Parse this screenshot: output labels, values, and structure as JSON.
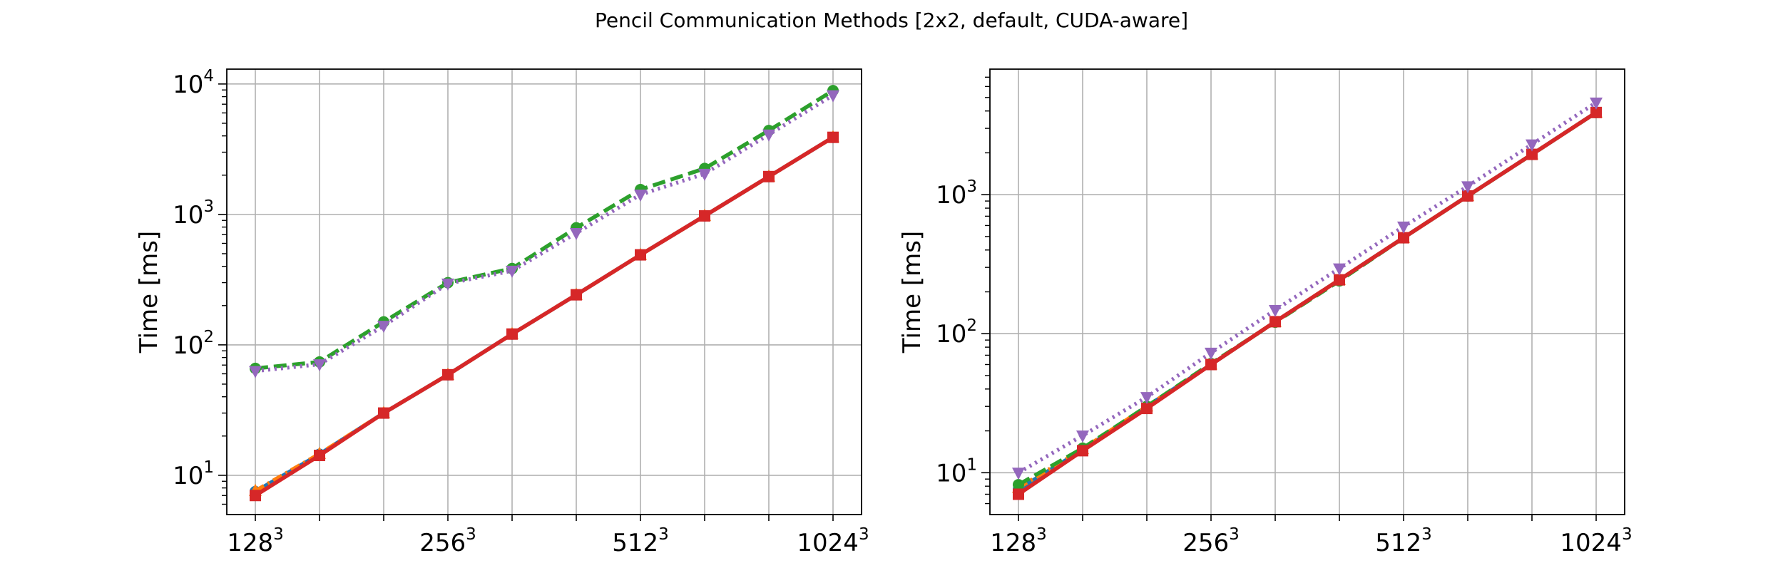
{
  "figure": {
    "title": "Pencil Communication Methods [2x2, default, CUDA-aware]"
  },
  "chart_data": [
    {
      "type": "line",
      "ylabel": "Time [ms]",
      "yscale": "log",
      "xscale": "log2",
      "ylim": [
        5,
        13000
      ],
      "yticks": [
        {
          "value": 10,
          "base": "10",
          "exp": "1"
        },
        {
          "value": 100,
          "base": "10",
          "exp": "2"
        },
        {
          "value": 1000,
          "base": "10",
          "exp": "3"
        },
        {
          "value": 10000,
          "base": "10",
          "exp": "4"
        }
      ],
      "xticks": [
        {
          "base": "128",
          "exp": "3",
          "size_index": 0
        },
        {
          "base": "256",
          "exp": "3",
          "size_index": 3
        },
        {
          "base": "512",
          "exp": "3",
          "size_index": 6
        },
        {
          "base": "1024",
          "exp": "3",
          "size_index": 9
        }
      ],
      "grid": true,
      "x_count": 10,
      "series": [
        {
          "color": "#1f77b4",
          "linestyle": "solid",
          "marker": "circle",
          "values": [
            7.5,
            14.5,
            30,
            59,
            121,
            242,
            490,
            975,
            1950,
            3900
          ]
        },
        {
          "color": "#ff7f0e",
          "linestyle": "dashdot",
          "marker": "triangle-up",
          "values": [
            7.6,
            14.6,
            30,
            59,
            121,
            242,
            490,
            975,
            1950,
            3900
          ]
        },
        {
          "color": "#2ca02c",
          "linestyle": "dashed",
          "marker": "circle",
          "values": [
            66,
            74,
            150,
            300,
            385,
            790,
            1550,
            2250,
            4400,
            8900
          ]
        },
        {
          "color": "#d62728",
          "linestyle": "solid",
          "marker": "square",
          "values": [
            7.0,
            14.2,
            30,
            59,
            121,
            242,
            490,
            975,
            1950,
            3900
          ]
        },
        {
          "color": "#9467bd",
          "linestyle": "dotted",
          "marker": "triangle-down",
          "values": [
            63,
            71,
            140,
            295,
            370,
            720,
            1420,
            2050,
            4100,
            8200
          ]
        }
      ]
    },
    {
      "type": "line",
      "ylabel": "Time [ms]",
      "yscale": "log",
      "xscale": "log2",
      "ylim": [
        5,
        8000
      ],
      "yticks": [
        {
          "value": 10,
          "base": "10",
          "exp": "1"
        },
        {
          "value": 100,
          "base": "10",
          "exp": "2"
        },
        {
          "value": 1000,
          "base": "10",
          "exp": "3"
        }
      ],
      "xticks": [
        {
          "base": "128",
          "exp": "3",
          "size_index": 0
        },
        {
          "base": "256",
          "exp": "3",
          "size_index": 3
        },
        {
          "base": "512",
          "exp": "3",
          "size_index": 6
        },
        {
          "base": "1024",
          "exp": "3",
          "size_index": 9
        }
      ],
      "grid": true,
      "x_count": 10,
      "series": [
        {
          "color": "#1f77b4",
          "linestyle": "solid",
          "marker": "circle",
          "values": [
            7.6,
            14.6,
            30,
            60,
            122,
            244,
            490,
            980,
            1950,
            3900
          ]
        },
        {
          "color": "#ff7f0e",
          "linestyle": "dashdot",
          "marker": "triangle-up",
          "values": [
            7.8,
            14.8,
            30,
            60,
            122,
            244,
            490,
            980,
            1950,
            3900
          ]
        },
        {
          "color": "#2ca02c",
          "linestyle": "dashed",
          "marker": "circle",
          "values": [
            8.2,
            15.0,
            30,
            61,
            121,
            240,
            490,
            980,
            1950,
            3900
          ]
        },
        {
          "color": "#d62728",
          "linestyle": "solid",
          "marker": "square",
          "values": [
            7.0,
            14.4,
            29,
            60,
            122,
            244,
            490,
            980,
            1950,
            3900
          ]
        },
        {
          "color": "#9467bd",
          "linestyle": "dotted",
          "marker": "triangle-down",
          "values": [
            10,
            18.5,
            35,
            73,
            148,
            295,
            590,
            1150,
            2300,
            4600
          ]
        }
      ]
    }
  ]
}
